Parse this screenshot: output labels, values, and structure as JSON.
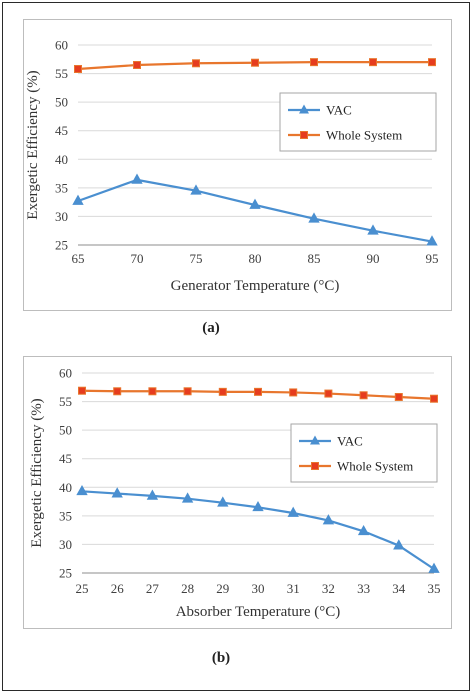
{
  "colors": {
    "vac": "#4a8fd0",
    "whole": "#e8762d",
    "marker_fill": "#e63c1e",
    "gridline": "#d9d9d9",
    "axis": "#8c8c8c"
  },
  "captions": {
    "a": "(a)",
    "b": "(b)"
  },
  "chart_data": [
    {
      "type": "line",
      "xlabel": "Generator Temperature (°C)",
      "ylabel": "Exergetic Efficiency (%)",
      "x": [
        65,
        70,
        75,
        80,
        85,
        90,
        95
      ],
      "xticks": [
        "65",
        "70",
        "75",
        "80",
        "85",
        "90",
        "95"
      ],
      "ylim": [
        25,
        60
      ],
      "yticks": [
        "25",
        "30",
        "35",
        "40",
        "45",
        "50",
        "55",
        "60"
      ],
      "legend_position": "right",
      "series": [
        {
          "name": "VAC",
          "marker": "triangle",
          "values": [
            32.7,
            36.4,
            34.5,
            32.0,
            29.6,
            27.5,
            25.6
          ]
        },
        {
          "name": "Whole System",
          "marker": "square",
          "values": [
            55.8,
            56.5,
            56.8,
            56.9,
            57.0,
            57.0,
            57.0
          ]
        }
      ]
    },
    {
      "type": "line",
      "xlabel": "Absorber Temperature (°C)",
      "ylabel": "Exergetic Efficiency (%)",
      "x": [
        25,
        26,
        27,
        28,
        29,
        30,
        31,
        32,
        33,
        34,
        35
      ],
      "xticks": [
        "25",
        "26",
        "27",
        "28",
        "29",
        "30",
        "31",
        "32",
        "33",
        "34",
        "35"
      ],
      "ylim": [
        25,
        60
      ],
      "yticks": [
        "25",
        "30",
        "35",
        "40",
        "45",
        "50",
        "55",
        "60"
      ],
      "legend_position": "right",
      "series": [
        {
          "name": "VAC",
          "marker": "triangle",
          "values": [
            39.3,
            38.9,
            38.5,
            38.0,
            37.3,
            36.5,
            35.5,
            34.2,
            32.3,
            29.8,
            25.7
          ]
        },
        {
          "name": "Whole System",
          "marker": "square",
          "values": [
            56.9,
            56.8,
            56.8,
            56.8,
            56.7,
            56.7,
            56.6,
            56.4,
            56.1,
            55.8,
            55.5
          ]
        }
      ]
    }
  ]
}
